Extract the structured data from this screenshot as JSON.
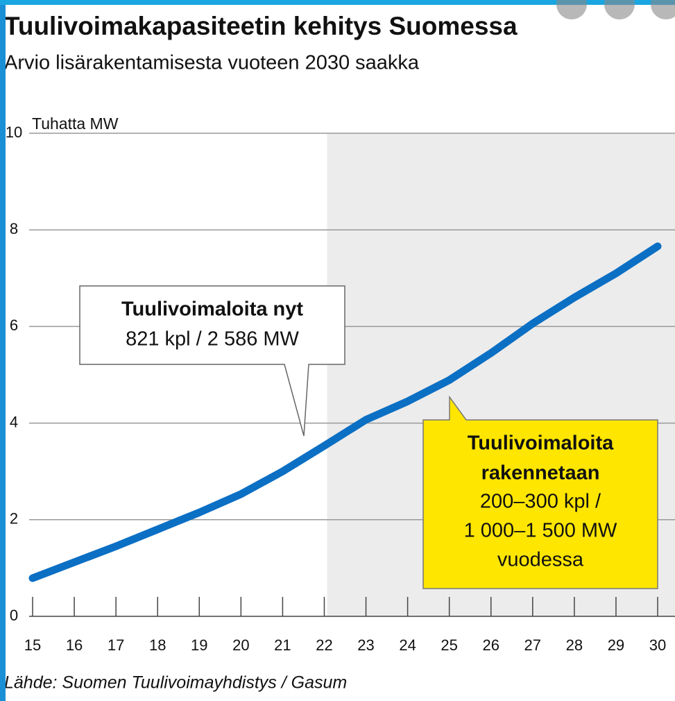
{
  "chart_data": {
    "type": "line",
    "title": "Tuulivoimakapasiteetin kehitys Suomessa",
    "subtitle": "Arvio lisärakentamisesta vuoteen 2030 saakka",
    "y_label": "Tuhatta MW",
    "source": "Lähde: Suomen Tuulivoimayhdistys / Gasum",
    "x": [
      15,
      16,
      17,
      18,
      19,
      20,
      21,
      22,
      23,
      24,
      25,
      26,
      27,
      28,
      29,
      30
    ],
    "values": [
      0.79,
      1.12,
      1.45,
      1.8,
      2.15,
      2.53,
      3.0,
      3.53,
      4.07,
      4.45,
      4.89,
      5.45,
      6.06,
      6.6,
      7.1,
      7.66
    ],
    "color": "#0b6fc4",
    "xlim": [
      15,
      30
    ],
    "xticks": [
      15,
      16,
      17,
      18,
      19,
      20,
      21,
      22,
      23,
      24,
      25,
      26,
      27,
      28,
      29,
      30
    ],
    "ylim": [
      0,
      10
    ],
    "yticks": [
      0,
      2,
      4,
      6,
      8,
      10
    ],
    "grid": true,
    "shaded_from": 22,
    "annotations": [
      {
        "lines": [
          "Tuulivoimaloita nyt",
          "821 kpl / 2 586 MW"
        ]
      },
      {
        "lines": [
          "Tuulivoimaloita",
          "rakennetaan",
          "200–300 kpl /",
          "1 000–1 500 MW",
          "vuodessa"
        ]
      }
    ]
  }
}
